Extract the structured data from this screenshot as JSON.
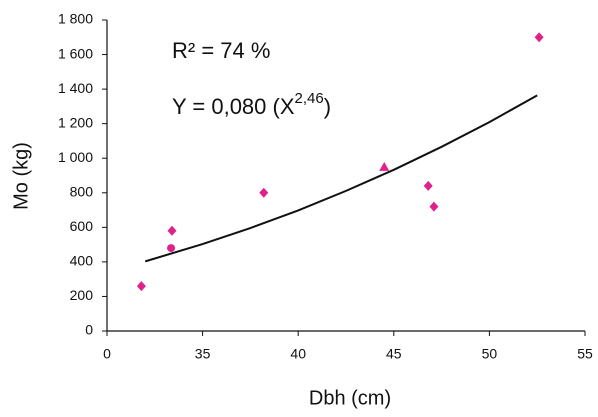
{
  "chart_data": {
    "type": "scatter",
    "x_label": "Dbh (cm)",
    "y_label": "Mo (kg)",
    "annotations": [
      "R² = 74 %"
    ],
    "equation": {
      "text": "Y = 0,080 (X",
      "sup": "2,46",
      "close": ")"
    },
    "xlim": [
      30,
      55
    ],
    "xticks": [
      {
        "value": 30,
        "label": "0"
      },
      35,
      40,
      45,
      50,
      55
    ],
    "ylim": [
      0,
      1800
    ],
    "yticks": [
      0,
      200,
      400,
      600,
      800,
      {
        "value": 1000,
        "label": "1 000"
      },
      {
        "value": 1200,
        "label": "1 200"
      },
      {
        "value": 1400,
        "label": "1 400"
      },
      {
        "value": 1600,
        "label": "1 600"
      },
      {
        "value": 1800,
        "label": "1 800"
      }
    ],
    "series": [
      {
        "color": "#e0218a",
        "x": [
          31.8,
          33.4,
          33.35,
          38.2,
          44.5,
          46.8,
          47.1,
          52.6
        ],
        "values": [
          260,
          580,
          480,
          800,
          950,
          840,
          720,
          1700
        ],
        "markers": [
          "diamond",
          "diamond",
          "circle",
          "diamond",
          "triangle",
          "diamond",
          "diamond",
          "diamond"
        ]
      }
    ],
    "fit": {
      "color": "#111111",
      "x": [
        32,
        35,
        37.5,
        40,
        42.5,
        45,
        47.5,
        50,
        52.5
      ],
      "y": [
        403,
        503,
        596,
        698,
        811,
        933,
        1066,
        1209,
        1364
      ]
    }
  }
}
